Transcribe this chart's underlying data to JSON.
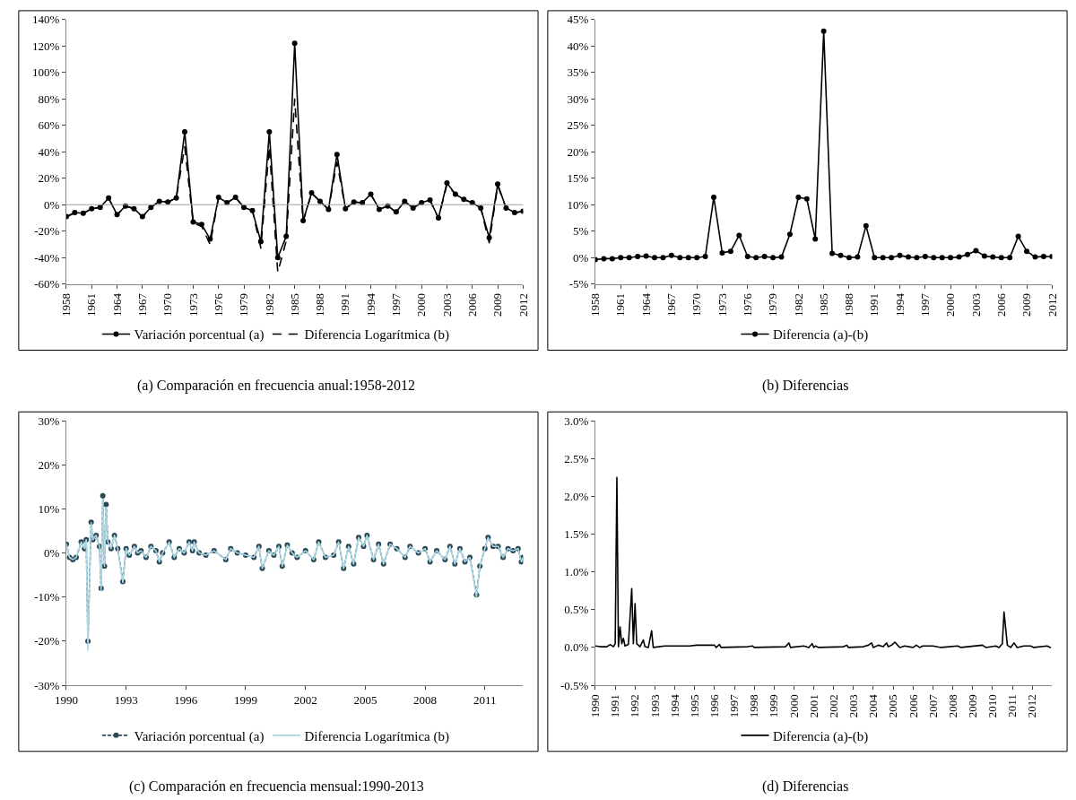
{
  "chart_data": [
    {
      "type": "line",
      "title": "(a) Comparación en frecuencia anual:1958-2012",
      "x": [
        1958,
        1959,
        1960,
        1961,
        1962,
        1963,
        1964,
        1965,
        1966,
        1967,
        1968,
        1969,
        1970,
        1971,
        1972,
        1973,
        1974,
        1975,
        1976,
        1977,
        1978,
        1979,
        1980,
        1981,
        1982,
        1983,
        1984,
        1985,
        1986,
        1987,
        1988,
        1989,
        1990,
        1991,
        1992,
        1993,
        1994,
        1995,
        1996,
        1997,
        1998,
        1999,
        2000,
        2001,
        2002,
        2003,
        2004,
        2005,
        2006,
        2007,
        2008,
        2009,
        2010,
        2011,
        2012
      ],
      "series": [
        {
          "name": "Variación porcentual (a)",
          "color": "#000000",
          "marker": "circle",
          "line_style": "solid",
          "values": [
            -9,
            -6,
            -6.5,
            -3,
            -2,
            5,
            -7.5,
            -1,
            -3,
            -9,
            -2,
            2.5,
            2,
            5,
            55,
            -13,
            -15,
            -26,
            5.5,
            1.5,
            5.5,
            -2,
            -4.5,
            -28,
            55,
            -40,
            -24,
            122,
            -12,
            9,
            2.5,
            -3.5,
            38,
            -3,
            2,
            1.5,
            8,
            -3.5,
            -1,
            -5.5,
            2.5,
            -2.5,
            1.5,
            3.5,
            -10,
            16.5,
            8,
            4,
            1.5,
            -2.5,
            -25,
            15.5,
            -2.5,
            -6,
            -5
          ]
        },
        {
          "name": "Diferencia Logarítmica (b)",
          "color": "#000000",
          "marker": "none",
          "line_style": "dashed",
          "values": [
            -9.4,
            -6.2,
            -6.7,
            -3,
            -2,
            4.9,
            -7.8,
            -1,
            -3,
            -9.4,
            -2,
            2.5,
            2,
            4.9,
            43.8,
            -13.9,
            -16.3,
            -30.1,
            5.4,
            1.5,
            5.4,
            -2,
            -4.6,
            -32.8,
            43.8,
            -51.1,
            -27.4,
            79.8,
            -12.8,
            8.6,
            2.5,
            -3.6,
            32.2,
            -3,
            2,
            1.5,
            7.7,
            -3.6,
            -1,
            -5.7,
            2.5,
            -2.5,
            1.5,
            3.4,
            -10.5,
            15.3,
            7.7,
            3.9,
            1.5,
            -2.5,
            -28.8,
            14.4,
            -2.5,
            -6.2,
            -5.1
          ]
        }
      ],
      "xlim": [
        1958,
        2012
      ],
      "xticks": [
        1958,
        1961,
        1964,
        1967,
        1970,
        1973,
        1976,
        1979,
        1982,
        1985,
        1988,
        1991,
        1994,
        1997,
        2000,
        2003,
        2006,
        2009,
        2012
      ],
      "ylim": [
        -60,
        140
      ],
      "yticks": [
        {
          "value": -60,
          "label": "-60%"
        },
        {
          "value": -40,
          "label": "-40%"
        },
        {
          "value": -20,
          "label": "-20%"
        },
        {
          "value": 0,
          "label": "0%"
        },
        {
          "value": 20,
          "label": "20%"
        },
        {
          "value": 40,
          "label": "40%"
        },
        {
          "value": 60,
          "label": "60%"
        },
        {
          "value": 80,
          "label": "80%"
        },
        {
          "value": 100,
          "label": "100%"
        },
        {
          "value": 120,
          "label": "120%"
        },
        {
          "value": 140,
          "label": "140%"
        }
      ],
      "ref_lines": [
        {
          "axis": "y",
          "value": 0,
          "color": "#a0a0a0"
        }
      ],
      "legend": "bottom"
    },
    {
      "type": "line",
      "title": "(b) Diferencias",
      "x": [
        1958,
        1959,
        1960,
        1961,
        1962,
        1963,
        1964,
        1965,
        1966,
        1967,
        1968,
        1969,
        1970,
        1971,
        1972,
        1973,
        1974,
        1975,
        1976,
        1977,
        1978,
        1979,
        1980,
        1981,
        1982,
        1983,
        1984,
        1985,
        1986,
        1987,
        1988,
        1989,
        1990,
        1991,
        1992,
        1993,
        1994,
        1995,
        1996,
        1997,
        1998,
        1999,
        2000,
        2001,
        2002,
        2003,
        2004,
        2005,
        2006,
        2007,
        2008,
        2009,
        2010,
        2011,
        2012
      ],
      "series": [
        {
          "name": "Diferencia (a)-(b)",
          "color": "#000000",
          "marker": "circle",
          "line_style": "solid",
          "values": [
            -0.4,
            -0.2,
            -0.2,
            0,
            0,
            0.2,
            0.3,
            0,
            0,
            0.4,
            0,
            0,
            0,
            0.2,
            11.4,
            0.9,
            1.2,
            4.2,
            0.2,
            0,
            0.2,
            0,
            0.1,
            4.4,
            11.4,
            11.1,
            3.5,
            42.8,
            0.8,
            0.4,
            0,
            0.1,
            6,
            0,
            0,
            0,
            0.4,
            0.1,
            0,
            0.2,
            0,
            0,
            0,
            0.1,
            0.6,
            1.3,
            0.3,
            0.1,
            0,
            0,
            4,
            1.2,
            0.1,
            0.2,
            0.2
          ]
        }
      ],
      "xlim": [
        1958,
        2012
      ],
      "xticks": [
        1958,
        1961,
        1964,
        1967,
        1970,
        1973,
        1976,
        1979,
        1982,
        1985,
        1988,
        1991,
        1994,
        1997,
        2000,
        2003,
        2006,
        2009,
        2012
      ],
      "ylim": [
        -5,
        45
      ],
      "yticks": [
        {
          "value": -5,
          "label": "-5%"
        },
        {
          "value": 0,
          "label": "0%"
        },
        {
          "value": 5,
          "label": "5%"
        },
        {
          "value": 10,
          "label": "10%"
        },
        {
          "value": 15,
          "label": "15%"
        },
        {
          "value": 20,
          "label": "20%"
        },
        {
          "value": 25,
          "label": "25%"
        },
        {
          "value": 30,
          "label": "30%"
        },
        {
          "value": 35,
          "label": "35%"
        },
        {
          "value": 40,
          "label": "40%"
        },
        {
          "value": 45,
          "label": "45%"
        }
      ],
      "legend": "bottom"
    },
    {
      "type": "line",
      "title": "(c) Comparación en frecuencia mensual:1990-2013",
      "x": [
        "1990-01",
        "1990-03",
        "1990-05",
        "1990-07",
        "1990-10",
        "1990-12",
        "1991-01",
        "1991-02",
        "1991-04",
        "1991-05",
        "1991-07",
        "1991-09",
        "1991-10",
        "1991-11",
        "1991-12",
        "1992-01",
        "1992-02",
        "1992-04",
        "1992-06",
        "1992-08",
        "1992-11",
        "1993-01",
        "1993-03",
        "1993-06",
        "1993-08",
        "1993-10",
        "1994-01",
        "1994-04",
        "1994-07",
        "1994-09",
        "1994-11",
        "1995-03",
        "1995-06",
        "1995-09",
        "1995-12",
        "1996-03",
        "1996-05",
        "1996-06",
        "1996-09",
        "1997-01",
        "1997-06",
        "1998-01",
        "1998-04",
        "1998-08",
        "1999-01",
        "1999-06",
        "1999-09",
        "1999-11",
        "2000-03",
        "2000-06",
        "2000-09",
        "2000-11",
        "2001-02",
        "2001-05",
        "2001-08",
        "2002-01",
        "2002-06",
        "2002-09",
        "2003-01",
        "2003-06",
        "2003-09",
        "2003-12",
        "2004-03",
        "2004-06",
        "2004-09",
        "2004-12",
        "2005-02",
        "2005-06",
        "2005-09",
        "2005-12",
        "2006-04",
        "2006-08",
        "2007-01",
        "2007-04",
        "2007-09",
        "2008-01",
        "2008-04",
        "2008-08",
        "2009-01",
        "2009-04",
        "2009-07",
        "2009-10",
        "2010-01",
        "2010-04",
        "2010-08",
        "2010-10",
        "2011-01",
        "2011-03",
        "2011-06",
        "2011-09",
        "2011-12",
        "2012-03",
        "2012-06",
        "2012-09",
        "2012-11",
        "2012-12"
      ],
      "series": [
        {
          "name": "Variación porcentual (a)",
          "color": "#2b4a55",
          "marker": "circle",
          "line_style": "dotted",
          "values": [
            2,
            -1,
            -1.5,
            -1,
            2.5,
            1,
            3,
            -20,
            7,
            3,
            4,
            1.5,
            -8,
            13,
            -3,
            11,
            2.5,
            1,
            4,
            1,
            -6.5,
            1,
            -0.5,
            1.5,
            0,
            0.5,
            -1,
            1.5,
            0.5,
            -2,
            0,
            2.5,
            -1,
            1,
            0,
            2.5,
            0.5,
            2.5,
            0,
            -0.5,
            0.5,
            -1.5,
            1,
            0,
            -0.5,
            -1,
            1.5,
            -3.5,
            0.5,
            -0.5,
            1.5,
            -3,
            1.8,
            0,
            -1,
            0.5,
            -1.5,
            2.5,
            -1,
            -0.5,
            2.5,
            -3.5,
            1.5,
            -2.5,
            3.5,
            1.5,
            4,
            -1.5,
            2,
            -2.5,
            2,
            1,
            -1,
            1.5,
            0,
            1,
            -2,
            0.5,
            -1.5,
            1.5,
            -2.5,
            1,
            -2,
            -1,
            -9.5,
            -3,
            1,
            3.5,
            1.5,
            1.5,
            -1,
            1,
            0.5,
            1,
            -2,
            -1
          ]
        },
        {
          "name": "Diferencia Logarítmica (b)",
          "color": "#a8d8e6",
          "marker": "none",
          "line_style": "solid",
          "values": [
            2,
            -1,
            -1.5,
            -1,
            2.5,
            1,
            3,
            -22,
            6.8,
            3,
            4,
            1.5,
            -8.5,
            12.2,
            -3,
            10.4,
            2.5,
            1,
            4,
            1,
            -6.7,
            1,
            -0.5,
            1.5,
            0,
            0.5,
            -1,
            1.5,
            0.5,
            -2,
            0,
            2.5,
            -1,
            1,
            0,
            2.5,
            0.5,
            2.5,
            0,
            -0.5,
            0.5,
            -1.5,
            1,
            0,
            -0.5,
            -1,
            1.5,
            -3.5,
            0.5,
            -0.5,
            1.5,
            -3,
            1.8,
            0,
            -1,
            0.5,
            -1.5,
            2.5,
            -1,
            -0.5,
            2.5,
            -3.5,
            1.5,
            -2.5,
            3.5,
            1.5,
            4,
            -1.5,
            2,
            -2.5,
            2,
            1,
            -1,
            1.5,
            0,
            1,
            -2,
            0.5,
            -1.5,
            1.5,
            -2.5,
            1,
            -2,
            -1,
            -10,
            -3,
            1,
            3.5,
            1.5,
            1.5,
            -1,
            1,
            0.5,
            1,
            -2,
            -1
          ]
        }
      ],
      "xlim": [
        "1990-01",
        "2012-12"
      ],
      "xticks": [
        {
          "value": "1990-01",
          "label": "1990"
        },
        {
          "value": "1993-01",
          "label": "1993"
        },
        {
          "value": "1996-01",
          "label": "1996"
        },
        {
          "value": "1999-01",
          "label": "1999"
        },
        {
          "value": "2002-01",
          "label": "2002"
        },
        {
          "value": "2005-01",
          "label": "2005"
        },
        {
          "value": "2008-01",
          "label": "2008"
        },
        {
          "value": "2011-01",
          "label": "2011"
        }
      ],
      "ylim": [
        -30,
        30
      ],
      "yticks": [
        {
          "value": -30,
          "label": "-30%"
        },
        {
          "value": -20,
          "label": "-20%"
        },
        {
          "value": -10,
          "label": "-10%"
        },
        {
          "value": 0,
          "label": "0%"
        },
        {
          "value": 10,
          "label": "10%"
        },
        {
          "value": 20,
          "label": "20%"
        },
        {
          "value": 30,
          "label": "30%"
        }
      ],
      "legend": "bottom"
    },
    {
      "type": "line",
      "title": "(d) Diferencias",
      "x": [
        "1990-01",
        "1990-04",
        "1990-08",
        "1990-10",
        "1990-12",
        "1991-01",
        "1991-02",
        "1991-03",
        "1991-04",
        "1991-05",
        "1991-06",
        "1991-07",
        "1991-09",
        "1991-11",
        "1991-12",
        "1992-01",
        "1992-02",
        "1992-04",
        "1992-06",
        "1992-07",
        "1992-09",
        "1992-11",
        "1992-12",
        "1993-07",
        "1994-06",
        "1994-10",
        "1995-02",
        "1996-01",
        "1996-02",
        "1996-04",
        "1996-05",
        "1997-09",
        "1997-12",
        "1998-01",
        "1999-08",
        "1999-10",
        "1999-11",
        "2000-07",
        "2000-10",
        "2000-12",
        "2001-01",
        "2001-02",
        "2001-04",
        "2002-07",
        "2002-09",
        "2002-10",
        "2003-07",
        "2003-10",
        "2003-12",
        "2004-01",
        "2004-04",
        "2004-07",
        "2004-09",
        "2004-10",
        "2004-12",
        "2005-02",
        "2005-05",
        "2005-08",
        "2006-01",
        "2006-03",
        "2006-05",
        "2006-07",
        "2007-01",
        "2007-06",
        "2008-04",
        "2008-06",
        "2009-07",
        "2009-09",
        "2010-03",
        "2010-05",
        "2010-07",
        "2010-08",
        "2010-10",
        "2010-12",
        "2011-02",
        "2011-04",
        "2011-08",
        "2011-12",
        "2012-02",
        "2012-10",
        "2012-12"
      ],
      "series": [
        {
          "name": "Diferencia (a)-(b)",
          "color": "#000000",
          "marker": "none",
          "line_style": "solid",
          "values": [
            0.02,
            0.01,
            0.01,
            0.04,
            0.01,
            0.05,
            2.25,
            0.01,
            0.27,
            0.05,
            0.12,
            0.02,
            0.04,
            0.78,
            0.05,
            0.58,
            0.05,
            0.01,
            0.1,
            0.01,
            0,
            0.22,
            0,
            0.02,
            0.02,
            0.02,
            0.03,
            0.03,
            0,
            0.04,
            0,
            0.01,
            0.02,
            0,
            0.01,
            0.06,
            0,
            0.02,
            0,
            0.05,
            0,
            0.02,
            0,
            0.01,
            0.03,
            0,
            0.01,
            0.03,
            0.06,
            0,
            0.03,
            0.01,
            0.06,
            0.01,
            0.03,
            0.07,
            0,
            0.02,
            0,
            0.03,
            0,
            0.02,
            0.02,
            0,
            0.02,
            0,
            0.03,
            0,
            0.02,
            0,
            0.05,
            0.47,
            0.03,
            0,
            0.06,
            0,
            0.02,
            0.02,
            0,
            0.02,
            0
          ]
        }
      ],
      "xlim": [
        "1990-01",
        "2013-01"
      ],
      "xticks": [
        {
          "value": "1990-01",
          "label": "1990"
        },
        {
          "value": "1991-01",
          "label": "1991"
        },
        {
          "value": "1992-01",
          "label": "1992"
        },
        {
          "value": "1993-01",
          "label": "1993"
        },
        {
          "value": "1994-01",
          "label": "1994"
        },
        {
          "value": "1995-01",
          "label": "1995"
        },
        {
          "value": "1996-01",
          "label": "1996"
        },
        {
          "value": "1997-01",
          "label": "1997"
        },
        {
          "value": "1998-01",
          "label": "1998"
        },
        {
          "value": "1999-01",
          "label": "1999"
        },
        {
          "value": "2000-01",
          "label": "2000"
        },
        {
          "value": "2001-01",
          "label": "2001"
        },
        {
          "value": "2002-01",
          "label": "2002"
        },
        {
          "value": "2003-01",
          "label": "2003"
        },
        {
          "value": "2004-01",
          "label": "2004"
        },
        {
          "value": "2005-01",
          "label": "2005"
        },
        {
          "value": "2006-01",
          "label": "2006"
        },
        {
          "value": "2007-01",
          "label": "2007"
        },
        {
          "value": "2008-01",
          "label": "2008"
        },
        {
          "value": "2009-01",
          "label": "2009"
        },
        {
          "value": "2010-01",
          "label": "2010"
        },
        {
          "value": "2011-01",
          "label": "2011"
        },
        {
          "value": "2012-01",
          "label": "2012"
        }
      ],
      "ylim": [
        -0.5,
        3.0
      ],
      "yticks": [
        {
          "value": -0.5,
          "label": "-0.5%"
        },
        {
          "value": 0,
          "label": "0.0%"
        },
        {
          "value": 0.5,
          "label": "0.5%"
        },
        {
          "value": 1.0,
          "label": "1.0%"
        },
        {
          "value": 1.5,
          "label": "1.5%"
        },
        {
          "value": 2.0,
          "label": "2.0%"
        },
        {
          "value": 2.5,
          "label": "2.5%"
        },
        {
          "value": 3.0,
          "label": "3.0%"
        }
      ],
      "legend": "bottom"
    }
  ]
}
